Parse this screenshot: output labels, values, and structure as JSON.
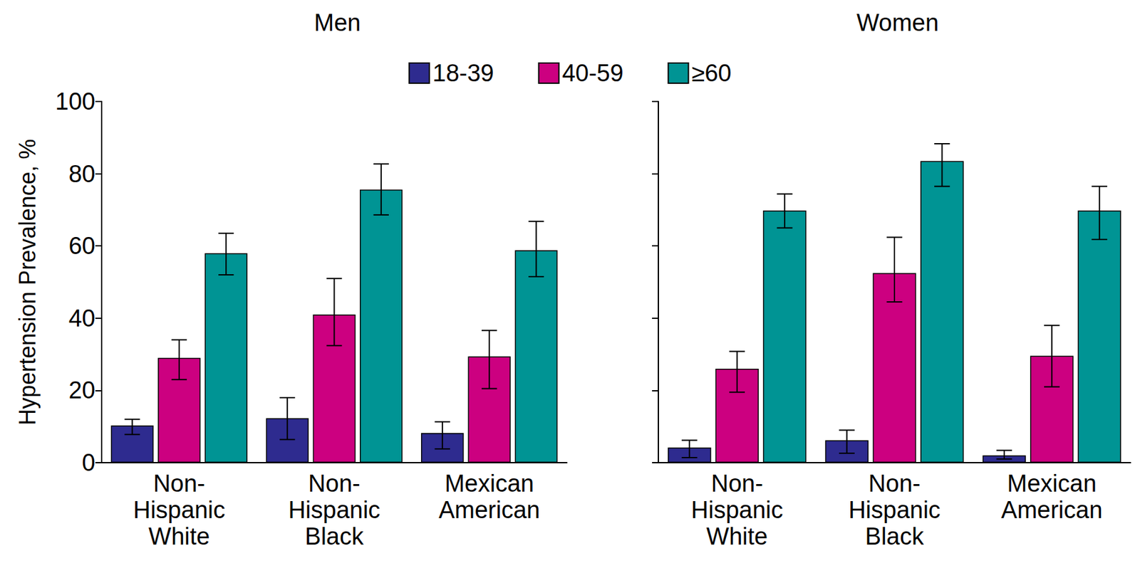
{
  "chart_data": [
    {
      "type": "bar",
      "title": "Men",
      "y_label": "Hypertension Prevalence, %",
      "categories": [
        "Non-Hispanic White",
        "Non-Hispanic Black",
        "Mexican American"
      ],
      "series": [
        {
          "name": "18-39",
          "color": "#2e2b8f",
          "values": [
            10.3,
            12.3,
            8.2
          ],
          "error_low": [
            7.8,
            6.4,
            3.8
          ],
          "error_high": [
            12.0,
            18.0,
            11.3
          ]
        },
        {
          "name": "40-59",
          "color": "#cc0080",
          "values": [
            29.0,
            41.0,
            29.4
          ],
          "error_low": [
            23.0,
            32.4,
            20.5
          ],
          "error_high": [
            34.0,
            51.0,
            36.6
          ]
        },
        {
          "name": "≥60",
          "color": "#009494",
          "values": [
            58.0,
            75.6,
            58.8
          ],
          "error_low": [
            52.0,
            68.6,
            51.5
          ],
          "error_high": [
            63.5,
            82.7,
            66.8
          ]
        }
      ],
      "ylim": [
        0,
        100
      ],
      "yticks": [
        0,
        20,
        40,
        60,
        80,
        100
      ],
      "grid": false,
      "legend": "top"
    },
    {
      "type": "bar",
      "title": "Women",
      "categories": [
        "Non-Hispanic White",
        "Non-Hispanic Black",
        "Mexican American"
      ],
      "series": [
        {
          "name": "18-39",
          "color": "#2e2b8f",
          "values": [
            4.2,
            6.2,
            2.0
          ],
          "error_low": [
            1.4,
            2.6,
            1.0
          ],
          "error_high": [
            6.2,
            9.0,
            3.4
          ]
        },
        {
          "name": "40-59",
          "color": "#cc0080",
          "values": [
            26.0,
            52.5,
            29.6
          ],
          "error_low": [
            19.5,
            44.5,
            21.0
          ],
          "error_high": [
            30.8,
            62.4,
            38.0
          ]
        },
        {
          "name": "≥60",
          "color": "#009494",
          "values": [
            69.8,
            83.5,
            69.8
          ],
          "error_low": [
            65.0,
            76.5,
            61.8
          ],
          "error_high": [
            74.4,
            88.3,
            76.5
          ]
        }
      ],
      "ylim": [
        0,
        100
      ],
      "yticks": [
        0,
        20,
        40,
        60,
        80,
        100
      ],
      "grid": false,
      "tick_labels": false
    }
  ]
}
